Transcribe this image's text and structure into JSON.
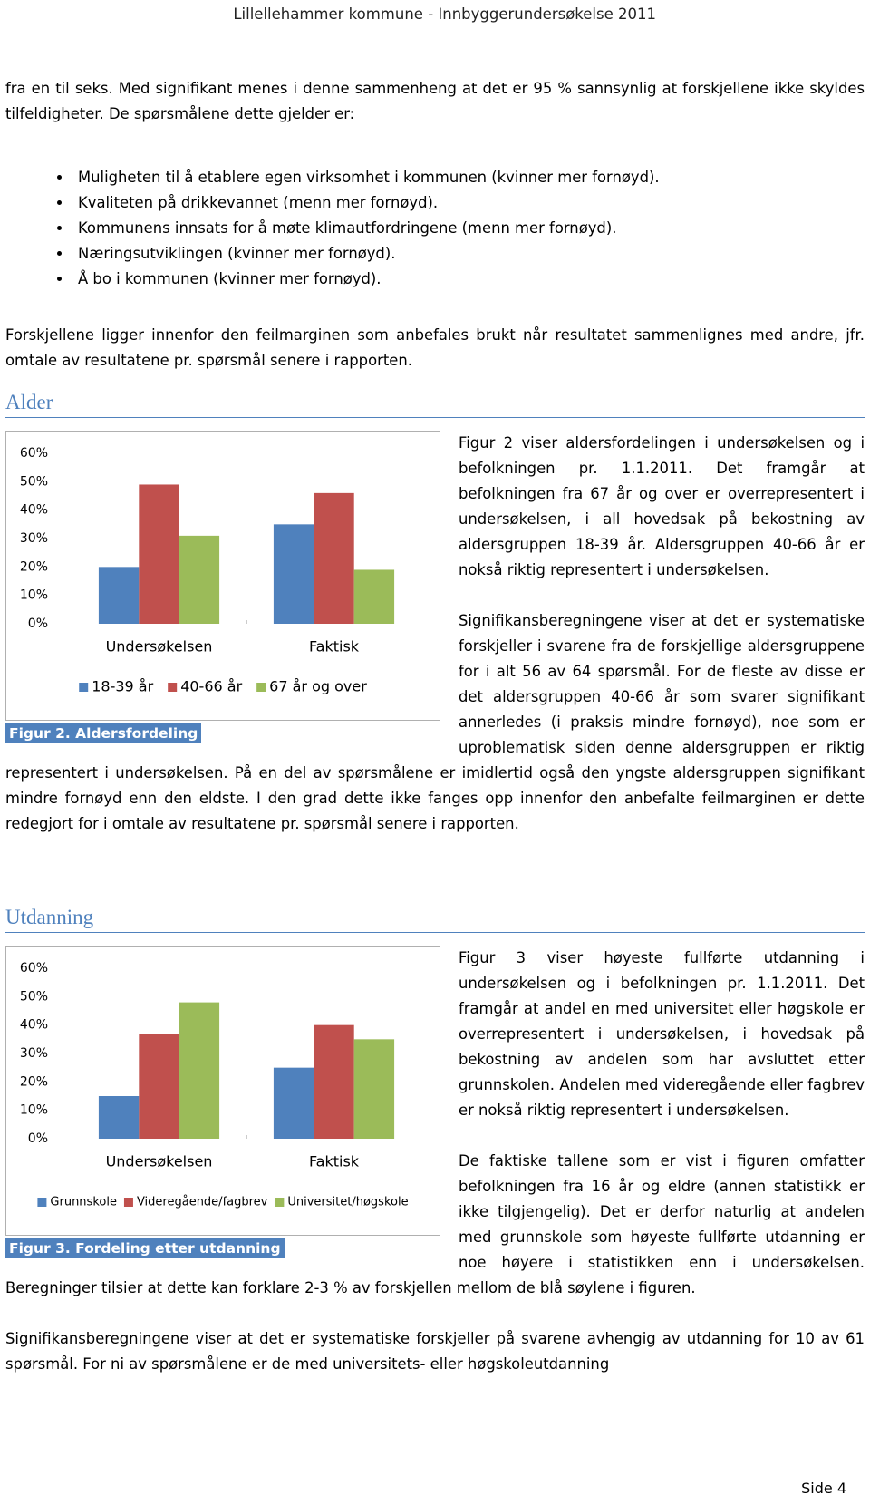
{
  "header": "Lillellehammer kommune - Innbyggerundersøkelse 2011",
  "intro": "fra en til seks. Med signifikant menes i denne sammenheng at det er 95 % sannsynlig at forskjellene ikke skyldes tilfeldigheter. De spørsmålene dette gjelder er:",
  "bullets": [
    "Muligheten til å etablere egen virksomhet i kommunen (kvinner mer fornøyd).",
    "Kvaliteten på drikkevannet (menn mer fornøyd).",
    "Kommunens innsats for å møte klimautfordringene (menn mer fornøyd).",
    "Næringsutviklingen (kvinner mer fornøyd).",
    "Å bo i kommunen (kvinner mer fornøyd)."
  ],
  "paragraph": "Forskjellene ligger innenfor den feilmarginen som anbefales brukt når resultatet sammenlignes med andre, jfr. omtale av resultatene pr. spørsmål senere i rapporten.",
  "sections": [
    {
      "heading": "Alder",
      "paragraphs": [
        "Figur 2 viser aldersfordelingen i undersøkelsen og i befolkningen pr. 1.1.2011. Det framgår at befolkningen fra 67 år og over er overrepresentert i undersøkelsen, i all hovedsak på bekostning av aldersgruppen 18-39 år. Aldersgruppen 40-66 år er nokså riktig representert i undersøkelsen.",
        "Signifikansberegningene viser at det er systematiske forskjeller i svarene fra de forskjellige aldersgruppene for i alt 56 av 64 spørsmål. For de fleste av disse er det aldersgruppen 40-66 år som svarer signifikant annerledes (i praksis mindre fornøyd), noe som er uproblematisk siden denne aldersgruppen er riktig representert i undersøkelsen. På en del av spørsmålene er imidlertid også den yngste aldersgruppen signifikant mindre fornøyd enn den eldste. I den grad dette ikke fanges opp innenfor den anbefalte feilmarginen er dette redegjort for i omtale av resultatene pr. spørsmål senere i rapporten."
      ]
    },
    {
      "heading": "Utdanning",
      "paragraphs": [
        "Figur 3 viser høyeste fullførte utdanning i undersøkelsen og i befolkningen pr. 1.1.2011. Det framgår at andel en med universitet eller høgskole er overrepresentert i undersøkelsen, i hovedsak på bekostning av andelen som har avsluttet etter grunnskolen. Andelen med videregående eller fagbrev er nokså riktig representert i undersøkelsen.",
        "De faktiske tallene som er vist i figuren omfatter befolkningen fra 16 år og eldre (annen statistikk er ikke tilgjengelig). Det er derfor naturlig at andelen med grunnskole som høyeste fullførte utdanning er noe høyere i statistikken enn i undersøkelsen. Beregninger tilsier at dette kan forklare 2-3 % av forskjellen mellom de blå søylene i figuren.",
        "Signifikansberegningene viser at det er systematiske forskjeller på svarene avhengig av utdanning for 10 av 61 spørsmål. For ni av spørsmålene er de med universitets- eller høgskoleutdanning"
      ]
    }
  ],
  "chart_data": [
    {
      "type": "bar",
      "caption": "Figur 2. Aldersfordeling",
      "categories": [
        "Undersøkelsen",
        "Faktisk"
      ],
      "series": [
        {
          "name": "18-39 år",
          "color": "#4f81bd",
          "values": [
            20,
            35
          ]
        },
        {
          "name": "40-66 år",
          "color": "#c0504d",
          "values": [
            49,
            46
          ]
        },
        {
          "name": "67 år og over",
          "color": "#9bbb59",
          "values": [
            31,
            19
          ]
        }
      ],
      "ylim": [
        0,
        60
      ],
      "yticks": [
        {
          "value": 0,
          "label": "0%"
        },
        {
          "value": 10,
          "label": "10%"
        },
        {
          "value": 20,
          "label": "20%"
        },
        {
          "value": 30,
          "label": "30%"
        },
        {
          "value": 40,
          "label": "40%"
        },
        {
          "value": 50,
          "label": "50%"
        },
        {
          "value": 60,
          "label": "60%"
        }
      ],
      "grid": false,
      "legend": "bottom"
    },
    {
      "type": "bar",
      "caption": "Figur 3. Fordeling etter utdanning",
      "categories": [
        "Undersøkelsen",
        "Faktisk"
      ],
      "series": [
        {
          "name": "Grunnskole",
          "color": "#4f81bd",
          "values": [
            15,
            25
          ]
        },
        {
          "name": "Videregående/fagbrev",
          "color": "#c0504d",
          "values": [
            37,
            40
          ]
        },
        {
          "name": "Universitet/høgskole",
          "color": "#9bbb59",
          "values": [
            48,
            35
          ]
        }
      ],
      "ylim": [
        0,
        60
      ],
      "yticks": [
        {
          "value": 0,
          "label": "0%"
        },
        {
          "value": 10,
          "label": "10%"
        },
        {
          "value": 20,
          "label": "20%"
        },
        {
          "value": 30,
          "label": "30%"
        },
        {
          "value": 40,
          "label": "40%"
        },
        {
          "value": 50,
          "label": "50%"
        },
        {
          "value": 60,
          "label": "60%"
        }
      ],
      "grid": false,
      "legend": "bottom"
    }
  ],
  "footer": "Side 4"
}
